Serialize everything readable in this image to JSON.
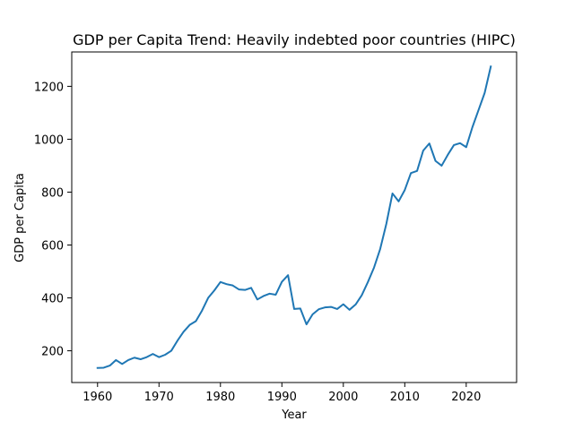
{
  "chart_data": {
    "type": "line",
    "title": "GDP per Capita Trend: Heavily indebted poor countries (HIPC)",
    "xlabel": "Year",
    "ylabel": "GDP per Capita",
    "xlim": [
      1955.8,
      2028.2
    ],
    "ylim": [
      80,
      1330
    ],
    "xticks": [
      1960,
      1970,
      1980,
      1990,
      2000,
      2010,
      2020
    ],
    "yticks": [
      200,
      400,
      600,
      800,
      1000,
      1200
    ],
    "grid": false,
    "legend": "none",
    "line_color": "#1f77b4",
    "series": [
      {
        "x": [
          1960,
          1961,
          1962,
          1963,
          1964,
          1965,
          1966,
          1967,
          1968,
          1969,
          1970,
          1971,
          1972,
          1973,
          1974,
          1975,
          1976,
          1977,
          1978,
          1979,
          1980,
          1981,
          1982,
          1983,
          1984,
          1985,
          1986,
          1987,
          1988,
          1989,
          1990,
          1991,
          1992,
          1993,
          1994,
          1995,
          1996,
          1997,
          1998,
          1999,
          2000,
          2001,
          2002,
          2003,
          2004,
          2005,
          2006,
          2007,
          2008,
          2009,
          2010,
          2011,
          2012,
          2013,
          2014,
          2015,
          2016,
          2017,
          2018,
          2019,
          2020,
          2021,
          2022,
          2023,
          2024
        ],
        "values": [
          135,
          136,
          144,
          165,
          150,
          165,
          174,
          168,
          176,
          188,
          176,
          185,
          200,
          238,
          272,
          298,
          312,
          352,
          400,
          428,
          460,
          452,
          447,
          432,
          430,
          438,
          394,
          407,
          416,
          412,
          461,
          486,
          358,
          360,
          300,
          338,
          357,
          364,
          366,
          358,
          376,
          355,
          375,
          410,
          460,
          515,
          585,
          680,
          795,
          765,
          808,
          872,
          880,
          957,
          984,
          918,
          900,
          941,
          978,
          985,
          970,
          1045,
          1110,
          1175,
          1275
        ]
      }
    ]
  }
}
